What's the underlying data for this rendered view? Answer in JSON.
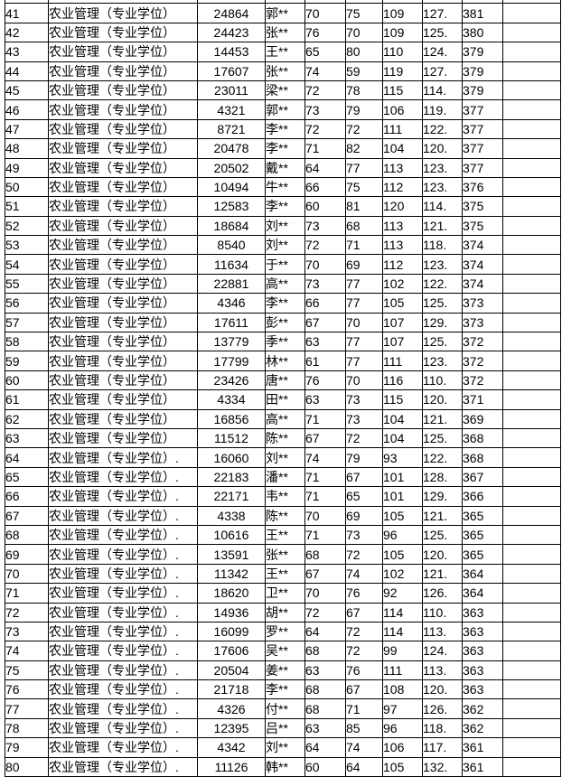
{
  "table": {
    "rows": [
      [
        "41",
        "农业管理（专业学位）",
        "24864",
        "郭**",
        "70",
        "75",
        "109",
        "127.",
        "381",
        ""
      ],
      [
        "42",
        "农业管理（专业学位）",
        "24423",
        "张**",
        "76",
        "70",
        "109",
        "125.",
        "380",
        ""
      ],
      [
        "43",
        "农业管理（专业学位）",
        "14453",
        "王**",
        "65",
        "80",
        "110",
        "124.",
        "379",
        ""
      ],
      [
        "44",
        "农业管理（专业学位）",
        "17607",
        "张**",
        "74",
        "59",
        "119",
        "127.",
        "379",
        ""
      ],
      [
        "45",
        "农业管理（专业学位）",
        "23011",
        "梁**",
        "72",
        "78",
        "115",
        "114.",
        "379",
        ""
      ],
      [
        "46",
        "农业管理（专业学位）",
        "4321",
        "郭**",
        "73",
        "79",
        "106",
        "119.",
        "377",
        ""
      ],
      [
        "47",
        "农业管理（专业学位）",
        "8721",
        "李**",
        "72",
        "72",
        "111",
        "122.",
        "377",
        ""
      ],
      [
        "48",
        "农业管理（专业学位）",
        "20478",
        "李**",
        "71",
        "82",
        "104",
        "120.",
        "377",
        ""
      ],
      [
        "49",
        "农业管理（专业学位）",
        "20502",
        "戴**",
        "64",
        "77",
        "113",
        "123.",
        "377",
        ""
      ],
      [
        "50",
        "农业管理（专业学位）",
        "10494",
        "牛**",
        "66",
        "75",
        "112",
        "123.",
        "376",
        ""
      ],
      [
        "51",
        "农业管理（专业学位）",
        "12583",
        "李**",
        "60",
        "81",
        "120",
        "114.",
        "375",
        ""
      ],
      [
        "52",
        "农业管理（专业学位）",
        "18684",
        "刘**",
        "73",
        "68",
        "113",
        "121.",
        "375",
        ""
      ],
      [
        "53",
        "农业管理（专业学位）",
        "8540",
        "刘**",
        "72",
        "71",
        "113",
        "118.",
        "374",
        ""
      ],
      [
        "54",
        "农业管理（专业学位）",
        "11634",
        "于**",
        "70",
        "69",
        "112",
        "123.",
        "374",
        ""
      ],
      [
        "55",
        "农业管理（专业学位）",
        "22881",
        "高**",
        "73",
        "77",
        "102",
        "122.",
        "374",
        ""
      ],
      [
        "56",
        "农业管理（专业学位）",
        "4346",
        "李**",
        "66",
        "77",
        "105",
        "125.",
        "373",
        ""
      ],
      [
        "57",
        "农业管理（专业学位）",
        "17611",
        "彭**",
        "67",
        "70",
        "107",
        "129.",
        "373",
        ""
      ],
      [
        "58",
        "农业管理（专业学位）",
        "13779",
        "季**",
        "63",
        "77",
        "107",
        "125.",
        "372",
        ""
      ],
      [
        "59",
        "农业管理（专业学位）",
        "17799",
        "林**",
        "61",
        "77",
        "111",
        "123.",
        "372",
        ""
      ],
      [
        "60",
        "农业管理（专业学位）",
        "23426",
        "唐**",
        "76",
        "70",
        "116",
        "110.",
        "372",
        ""
      ],
      [
        "61",
        "农业管理（专业学位）",
        "4334",
        "田**",
        "63",
        "73",
        "115",
        "120.",
        "371",
        ""
      ],
      [
        "62",
        "农业管理（专业学位）",
        "16856",
        "高**",
        "71",
        "73",
        "104",
        "121.",
        "369",
        ""
      ],
      [
        "63",
        "农业管理（专业学位）",
        "11512",
        "陈**",
        "67",
        "72",
        "104",
        "125.",
        "368",
        ""
      ],
      [
        "64",
        "农业管理（专业学位）.",
        "16060",
        "刘**",
        "74",
        "79",
        "93",
        "122.",
        "368",
        ""
      ],
      [
        "65",
        "农业管理（专业学位）.",
        "22183",
        "潘**",
        "71",
        "67",
        "101",
        "128.",
        "367",
        ""
      ],
      [
        "66",
        "农业管理（专业学位）.",
        "22171",
        "韦**",
        "71",
        "65",
        "101",
        "129.",
        "366",
        ""
      ],
      [
        "67",
        "农业管理（专业学位）.",
        "4338",
        "陈**",
        "70",
        "69",
        "105",
        "121.",
        "365",
        ""
      ],
      [
        "68",
        "农业管理（专业学位）.",
        "10616",
        "王**",
        "71",
        "73",
        "96",
        "125.",
        "365",
        ""
      ],
      [
        "69",
        "农业管理（专业学位）.",
        "13591",
        "张**",
        "68",
        "72",
        "105",
        "120.",
        "365",
        ""
      ],
      [
        "70",
        "农业管理（专业学位）.",
        "11342",
        "王**",
        "67",
        "74",
        "102",
        "121.",
        "364",
        ""
      ],
      [
        "71",
        "农业管理（专业学位）.",
        "18620",
        "卫**",
        "70",
        "76",
        "92",
        "126.",
        "364",
        ""
      ],
      [
        "72",
        "农业管理（专业学位）.",
        "14936",
        "胡**",
        "72",
        "67",
        "114",
        "110.",
        "363",
        ""
      ],
      [
        "73",
        "农业管理（专业学位）.",
        "16099",
        "罗**",
        "64",
        "72",
        "114",
        "113.",
        "363",
        ""
      ],
      [
        "74",
        "农业管理（专业学位）.",
        "17606",
        "吴**",
        "68",
        "72",
        "99",
        "124.",
        "363",
        ""
      ],
      [
        "75",
        "农业管理（专业学位）.",
        "20504",
        "姜**",
        "63",
        "76",
        "111",
        "113.",
        "363",
        ""
      ],
      [
        "76",
        "农业管理（专业学位）.",
        "21718",
        "李**",
        "68",
        "67",
        "108",
        "120.",
        "363",
        ""
      ],
      [
        "77",
        "农业管理（专业学位）.",
        "4326",
        "付**",
        "68",
        "71",
        "97",
        "126.",
        "362",
        ""
      ],
      [
        "78",
        "农业管理（专业学位）.",
        "12395",
        "吕**",
        "63",
        "85",
        "96",
        "118.",
        "362",
        ""
      ],
      [
        "79",
        "农业管理（专业学位）.",
        "4342",
        "刘**",
        "64",
        "74",
        "106",
        "117.",
        "361",
        ""
      ],
      [
        "80",
        "农业管理（专业学位）.",
        "11126",
        "韩**",
        "60",
        "64",
        "105",
        "132.",
        "361",
        ""
      ]
    ]
  }
}
